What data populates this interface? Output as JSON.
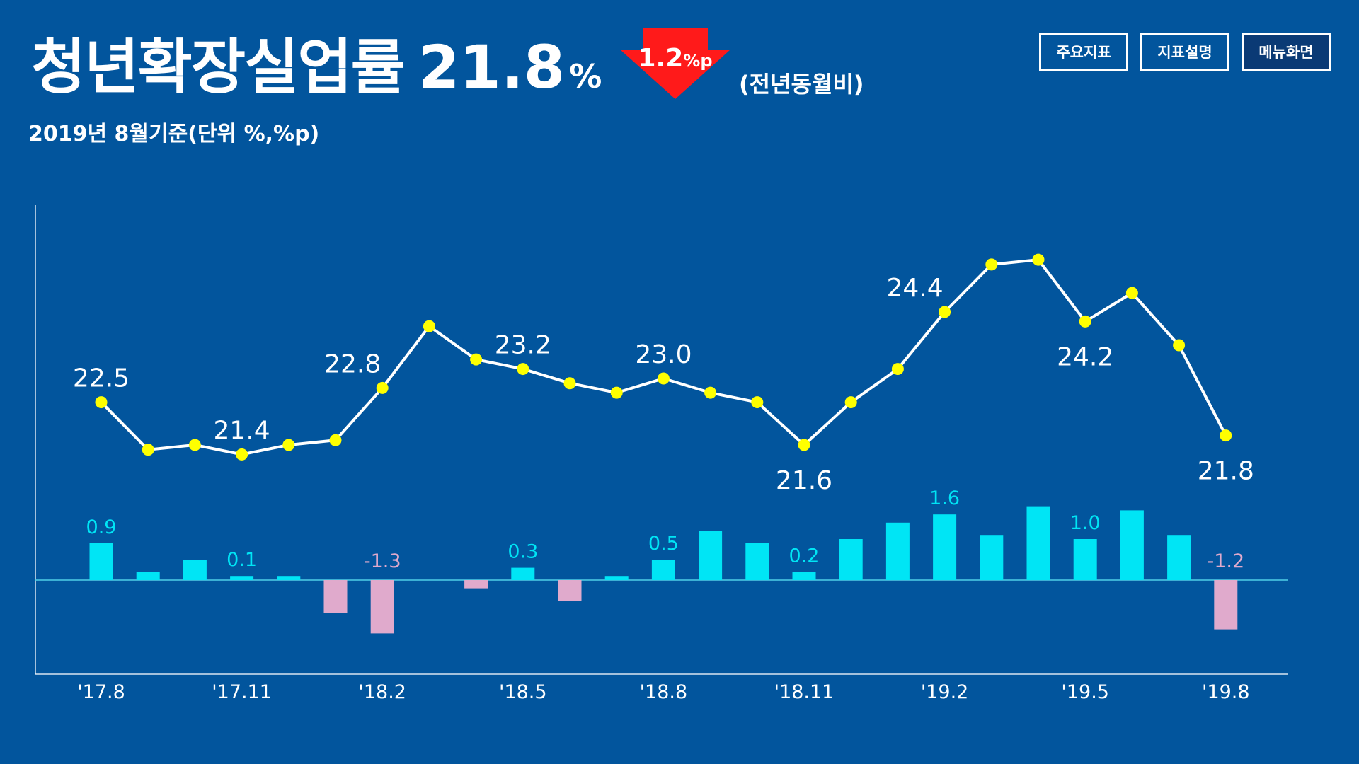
{
  "header": {
    "title": "청년확장실업률",
    "value": "21.8",
    "unit": "%",
    "change_value": "1.2",
    "change_unit": "%p",
    "compare_text": "(전년동월비)",
    "subtitle": "2019년 8월기준(단위 %,%p)"
  },
  "nav": {
    "key_indicators": "주요지표",
    "indicator_desc": "지표설명",
    "menu": "메뉴화면"
  },
  "colors": {
    "background": "#02559d",
    "line": "#ffffff",
    "marker": "#ffff00",
    "bar_positive": "#00e5f5",
    "bar_negative": "#e0aacc",
    "change_arrow": "#ff1a1a"
  },
  "chart_data": {
    "type": "line+bar",
    "x": [
      "'17.8",
      "'17.9",
      "'17.10",
      "'17.11",
      "'17.12",
      "'18.1",
      "'18.2",
      "'18.3",
      "'18.4",
      "'18.5",
      "'18.6",
      "'18.7",
      "'18.8",
      "'18.9",
      "'18.10",
      "'18.11",
      "'18.12",
      "'19.1",
      "'19.2",
      "'19.3",
      "'19.4",
      "'19.5",
      "'19.6",
      "'19.7",
      "'19.8"
    ],
    "x_tick_labels": [
      "'17.8",
      "",
      "",
      "'17.11",
      "",
      "",
      "'18.2",
      "",
      "",
      "'18.5",
      "",
      "",
      "'18.8",
      "",
      "",
      "'18.11",
      "",
      "",
      "'19.2",
      "",
      "",
      "'19.5",
      "",
      "",
      "'19.8"
    ],
    "series": [
      {
        "kind": "line",
        "values": [
          22.5,
          21.5,
          21.6,
          21.4,
          21.6,
          21.7,
          22.8,
          24.1,
          23.4,
          23.2,
          22.9,
          22.7,
          23.0,
          22.7,
          22.5,
          21.6,
          22.5,
          23.2,
          24.4,
          25.4,
          25.5,
          24.2,
          24.8,
          23.7,
          21.8
        ],
        "labels": [
          "22.5",
          "",
          "",
          "21.4",
          "",
          "",
          "22.8",
          "",
          "",
          "23.2",
          "",
          "",
          "23.0",
          "",
          "",
          "21.6",
          "",
          "",
          "24.4",
          "",
          "",
          "24.2",
          "",
          "",
          "21.8"
        ]
      },
      {
        "kind": "bar",
        "values": [
          0.9,
          0.2,
          0.5,
          0.1,
          0.1,
          -0.8,
          -1.3,
          0.0,
          -0.2,
          0.3,
          -0.5,
          0.1,
          0.5,
          1.2,
          0.9,
          0.2,
          1.0,
          1.4,
          1.6,
          1.1,
          1.8,
          1.0,
          1.7,
          1.1,
          -1.2
        ],
        "labels": [
          "0.9",
          "",
          "",
          "0.1",
          "",
          "",
          "-1.3",
          "",
          "",
          "0.3",
          "",
          "",
          "0.5",
          "",
          "",
          "0.2",
          "",
          "",
          "1.6",
          "",
          "",
          "1.0",
          "",
          "",
          "-1.2"
        ]
      }
    ],
    "line_ylim": [
      19.5,
      26.5
    ],
    "bar_ylim": [
      -2.0,
      2.0
    ],
    "grid": false,
    "legend": "none"
  }
}
